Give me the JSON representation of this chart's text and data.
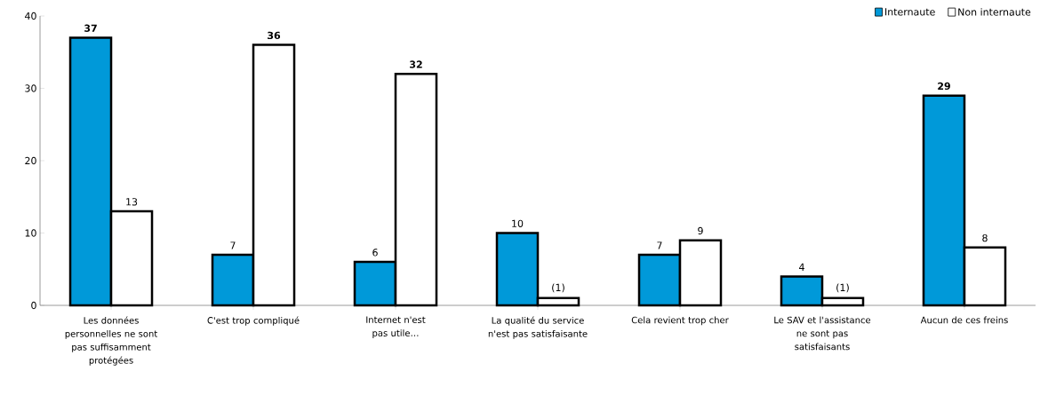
{
  "chart_data": {
    "type": "bar",
    "categories": [
      "Les données personnelles ne sont pas suffisamment protégées",
      "C'est trop compliqué",
      "Internet n'est pas utile…",
      "La qualité du service n'est pas satisfaisante",
      "Cela revient trop cher",
      "Le SAV et l'assistance ne sont pas satisfaisants",
      "Aucun de ces freins"
    ],
    "series": [
      {
        "name": "Internaute",
        "color": "#0099d9",
        "values": [
          37,
          7,
          6,
          10,
          7,
          4,
          29
        ],
        "value_labels": [
          "**37**",
          "7",
          "6",
          "10",
          "7",
          "4",
          "**29**"
        ]
      },
      {
        "name": "Non internaute",
        "color": "#ffffff",
        "values": [
          13,
          36,
          32,
          1,
          9,
          1,
          8
        ],
        "value_labels": [
          "13",
          "**36**",
          "**32**",
          "(1)",
          "9",
          "(1)",
          "8"
        ]
      }
    ],
    "ylim": [
      0,
      40
    ],
    "yticks": [
      0,
      10,
      20,
      30,
      40
    ],
    "grid": false,
    "legend": "top right"
  }
}
